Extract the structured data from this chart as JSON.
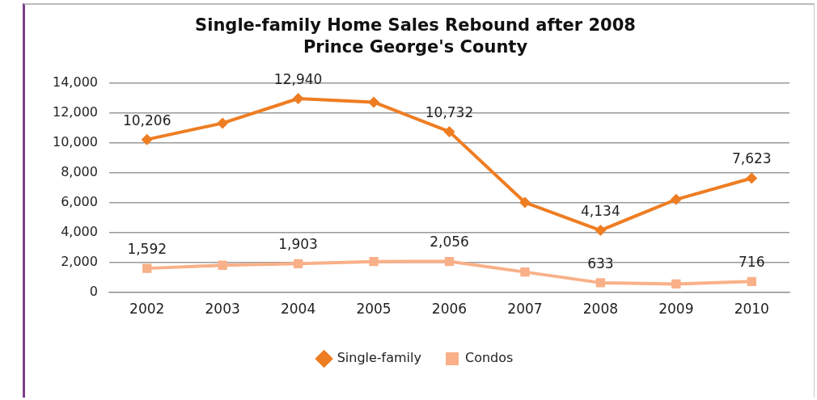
{
  "chart_data": {
    "type": "line",
    "title": "Single-family Home Sales Rebound after 2008",
    "subtitle": "Prince George's County",
    "categories": [
      "2002",
      "2003",
      "2004",
      "2005",
      "2006",
      "2007",
      "2008",
      "2009",
      "2010"
    ],
    "series": [
      {
        "name": "Single-family",
        "color": "#ee7d22",
        "marker": "diamond",
        "values": [
          10206,
          11300,
          12940,
          12700,
          10732,
          6000,
          4134,
          6200,
          7623
        ],
        "value_labels": [
          "10,206",
          null,
          "12,940",
          null,
          "10,732",
          null,
          "4,134",
          null,
          "7,623"
        ]
      },
      {
        "name": "Condos",
        "color": "#f9b088",
        "marker": "square",
        "values": [
          1592,
          1800,
          1903,
          2050,
          2056,
          1350,
          633,
          550,
          716
        ],
        "value_labels": [
          "1,592",
          null,
          "1,903",
          null,
          "2,056",
          null,
          "633",
          null,
          "716"
        ]
      }
    ],
    "ylim": [
      0,
      14000
    ],
    "yticks": [
      0,
      {
        "value": 2000,
        "label": "2,000"
      },
      {
        "value": 4000,
        "label": "4,000"
      },
      {
        "value": 6000,
        "label": "6,000"
      },
      {
        "value": 8000,
        "label": "8,000"
      },
      {
        "value": 10000,
        "label": "10,000"
      },
      {
        "value": 12000,
        "label": "12,000"
      },
      {
        "value": 14000,
        "label": "14,000"
      }
    ],
    "grid": "y",
    "legend": "bottom",
    "line_style": "solid"
  }
}
